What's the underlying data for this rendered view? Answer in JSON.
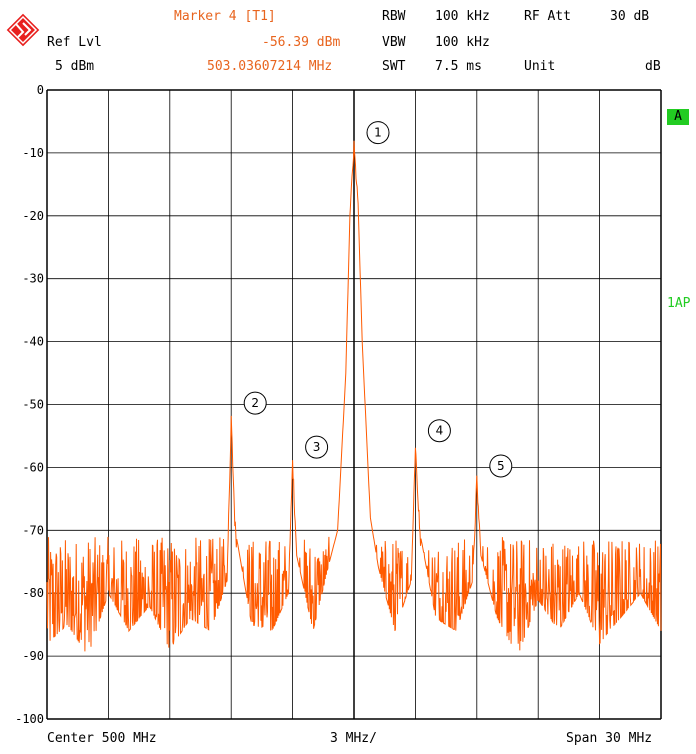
{
  "header": {
    "ref_lvl_label": "Ref Lvl",
    "ref_lvl_value": "5 dBm",
    "marker_title": "Marker 4 [T1]",
    "marker_level": "-56.39 dBm",
    "marker_freq": "503.03607214 MHz",
    "rbw_label": "RBW",
    "rbw_value": "100 kHz",
    "vbw_label": "VBW",
    "vbw_value": "100 kHz",
    "swt_label": "SWT",
    "swt_value": "7.5 ms",
    "rf_att_label": "RF Att",
    "rf_att_value": "30 dB",
    "unit_label": "Unit",
    "unit_value": "dB"
  },
  "side": {
    "trace_badge": "A",
    "detector": "1AP"
  },
  "footer": {
    "center": "Center 500 MHz",
    "per_div": "3 MHz/",
    "span": "Span 30 MHz"
  },
  "colors": {
    "trace": "#ff5a00",
    "grid": "#000000",
    "marker_text": "#e8641e",
    "badge": "#22cc22",
    "logo": "#e8201e"
  },
  "chart_data": {
    "type": "line",
    "xlabel": "",
    "ylabel": "",
    "x_unit": "MHz",
    "xlim": [
      485,
      515
    ],
    "ylim": [
      -100,
      0
    ],
    "yticks": [
      "0",
      "-10",
      "-20",
      "-30",
      "-40",
      "-50",
      "-60",
      "-70",
      "-80",
      "-90",
      "-100"
    ],
    "grid": true,
    "noise_floor": {
      "min": -92,
      "max": -71
    },
    "markers": [
      {
        "label": "1",
        "x": 500.0,
        "y": -9
      },
      {
        "label": "2",
        "x": 494.0,
        "y": -52
      },
      {
        "label": "3",
        "x": 497.0,
        "y": -59
      },
      {
        "label": "4",
        "x": 503.0,
        "y": -56.39
      },
      {
        "label": "5",
        "x": 506.0,
        "y": -62
      }
    ],
    "series": [
      {
        "points": [
          [
            485,
            -88
          ],
          [
            486,
            -85
          ],
          [
            487,
            -90
          ],
          [
            488,
            -80
          ],
          [
            489,
            -86
          ],
          [
            490,
            -82
          ],
          [
            491,
            -89
          ],
          [
            492,
            -84
          ],
          [
            493,
            -86
          ],
          [
            493.8,
            -78
          ],
          [
            494,
            -52
          ],
          [
            494.2,
            -70
          ],
          [
            495,
            -85
          ],
          [
            496,
            -86
          ],
          [
            496.8,
            -80
          ],
          [
            497,
            -59
          ],
          [
            497.2,
            -74
          ],
          [
            498,
            -86
          ],
          [
            498.8,
            -75
          ],
          [
            499.2,
            -70
          ],
          [
            499.6,
            -45
          ],
          [
            499.8,
            -20
          ],
          [
            500,
            -9
          ],
          [
            500.2,
            -18
          ],
          [
            500.4,
            -40
          ],
          [
            500.8,
            -68
          ],
          [
            501.2,
            -76
          ],
          [
            502,
            -86
          ],
          [
            502.8,
            -78
          ],
          [
            503,
            -56.39
          ],
          [
            503.2,
            -70
          ],
          [
            504,
            -84
          ],
          [
            505,
            -86
          ],
          [
            505.8,
            -78
          ],
          [
            506,
            -62
          ],
          [
            506.2,
            -74
          ],
          [
            507,
            -84
          ],
          [
            508,
            -90
          ],
          [
            509,
            -81
          ],
          [
            510,
            -86
          ],
          [
            511,
            -80
          ],
          [
            512,
            -88
          ],
          [
            513,
            -84
          ],
          [
            514,
            -80
          ],
          [
            515,
            -86
          ]
        ]
      }
    ]
  }
}
